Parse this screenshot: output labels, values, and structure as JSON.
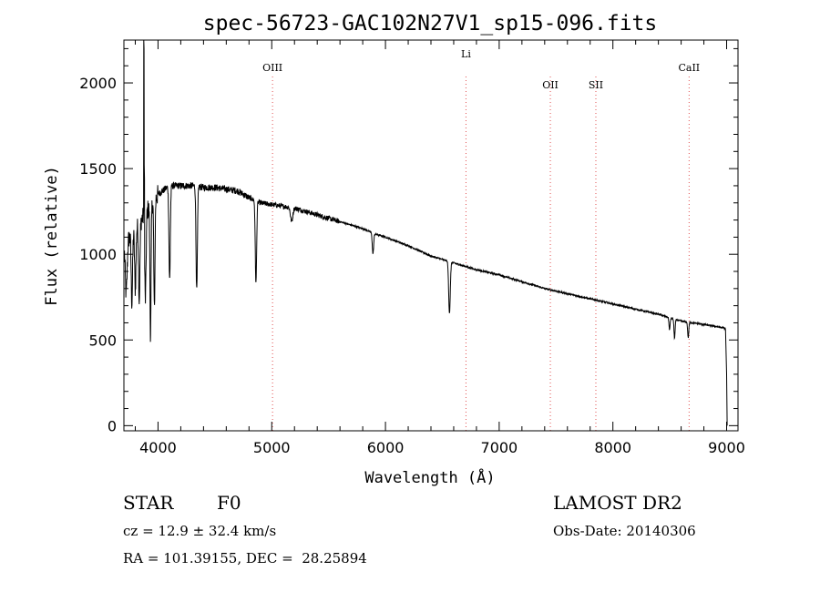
{
  "chart_data": {
    "type": "line",
    "title": "spec-56723-GAC102N27V1_sp15-096.fits",
    "xlabel": "Wavelength (Å)",
    "ylabel": "Flux (relative)",
    "xlim": [
      3700,
      9100
    ],
    "ylim": [
      -30,
      2250
    ],
    "x_ticks": [
      4000,
      5000,
      6000,
      7000,
      8000,
      9000
    ],
    "x_tick_labels": [
      "4000",
      "5000",
      "6000",
      "7000",
      "8000",
      "9000"
    ],
    "y_ticks": [
      0,
      500,
      1000,
      1500,
      2000
    ],
    "y_tick_labels": [
      "0",
      "500",
      "1000",
      "1500",
      "2000"
    ],
    "grid": false,
    "line_color": "#000000",
    "marker_color": "#e05050",
    "lines": [
      {
        "label": "OIII",
        "x": 5007
      },
      {
        "label": "Li",
        "x": 6708
      },
      {
        "label": "OII",
        "x": 7450
      },
      {
        "label": "SII",
        "x": 7850
      },
      {
        "label": "CaII",
        "x": 8670
      }
    ],
    "continuum": [
      [
        3700,
        1050
      ],
      [
        3800,
        1150
      ],
      [
        3900,
        1250
      ],
      [
        4000,
        1350
      ],
      [
        4100,
        1400
      ],
      [
        4200,
        1400
      ],
      [
        4300,
        1400
      ],
      [
        4400,
        1390
      ],
      [
        4500,
        1390
      ],
      [
        4600,
        1380
      ],
      [
        4700,
        1370
      ],
      [
        4800,
        1330
      ],
      [
        4900,
        1300
      ],
      [
        5000,
        1290
      ],
      [
        5100,
        1280
      ],
      [
        5200,
        1270
      ],
      [
        5300,
        1250
      ],
      [
        5400,
        1230
      ],
      [
        5500,
        1210
      ],
      [
        5600,
        1190
      ],
      [
        5700,
        1170
      ],
      [
        5800,
        1150
      ],
      [
        5900,
        1120
      ],
      [
        6000,
        1100
      ],
      [
        6200,
        1050
      ],
      [
        6400,
        990
      ],
      [
        6600,
        950
      ],
      [
        6800,
        910
      ],
      [
        7000,
        880
      ],
      [
        7200,
        840
      ],
      [
        7400,
        800
      ],
      [
        7600,
        770
      ],
      [
        7800,
        740
      ],
      [
        8000,
        710
      ],
      [
        8200,
        680
      ],
      [
        8400,
        650
      ],
      [
        8600,
        610
      ],
      [
        8800,
        590
      ],
      [
        8980,
        570
      ],
      [
        9000,
        560
      ]
    ],
    "absorption_features": [
      [
        3720,
        300,
        8
      ],
      [
        3770,
        400,
        6
      ],
      [
        3800,
        350,
        6
      ],
      [
        3835,
        450,
        6
      ],
      [
        3889,
        500,
        6
      ],
      [
        3934,
        750,
        5
      ],
      [
        3968,
        650,
        5
      ],
      [
        4102,
        550,
        6
      ],
      [
        4340,
        610,
        6
      ],
      [
        4861,
        480,
        6
      ],
      [
        5175,
        80,
        10
      ],
      [
        5890,
        120,
        6
      ],
      [
        6563,
        300,
        7
      ],
      [
        8498,
        70,
        5
      ],
      [
        8542,
        110,
        5
      ],
      [
        8662,
        90,
        5
      ]
    ],
    "emission_spikes": [
      [
        3876,
        1100
      ],
      [
        3880,
        400
      ]
    ],
    "red_edge_drop": [
      [
        8990,
        560
      ],
      [
        9000,
        300
      ],
      [
        9005,
        0
      ]
    ]
  },
  "info": {
    "object_class": "STAR",
    "subclass": "F0",
    "survey": "LAMOST DR2",
    "cz": "cz = 12.9 ± 32.4 km/s",
    "obs_date": "Obs-Date: 20140306",
    "coords": "RA = 101.39155, DEC =  28.25894"
  }
}
